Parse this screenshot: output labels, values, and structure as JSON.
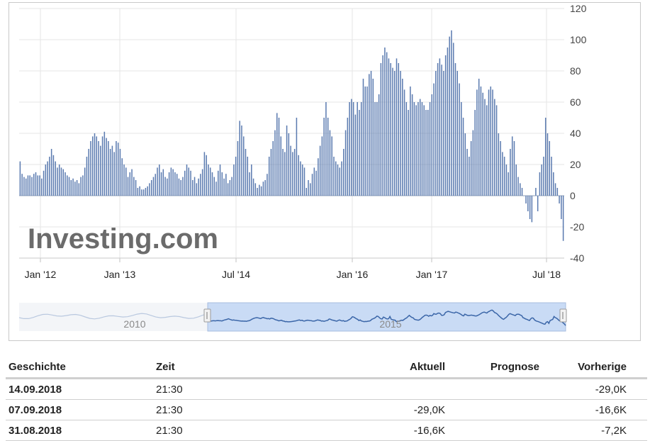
{
  "chart_data": {
    "type": "bar",
    "y_ticks": [
      120,
      100,
      80,
      60,
      40,
      20,
      0,
      -20,
      -40
    ],
    "y_tick_labels": [
      "120",
      "100",
      "80",
      "60",
      "40",
      "20",
      "0",
      "-20",
      "-40"
    ],
    "ylim": [
      -40,
      120
    ],
    "grid": true,
    "x_tick_labels": [
      "Jan '12",
      "Jan '13",
      "Jul '14",
      "Jan '16",
      "Jan '17",
      "Jul '18"
    ],
    "watermark": "Investing.com",
    "navigator_labels": [
      "2010",
      "2015"
    ],
    "series": [
      {
        "values": [
          22,
          14,
          12,
          11,
          13,
          13,
          12,
          14,
          15,
          13,
          13,
          11,
          16,
          20,
          22,
          25,
          30,
          26,
          22,
          18,
          20,
          18,
          17,
          15,
          13,
          12,
          10,
          11,
          9,
          10,
          8,
          12,
          13,
          18,
          25,
          30,
          35,
          38,
          40,
          38,
          35,
          32,
          38,
          41,
          37,
          35,
          30,
          32,
          28,
          35,
          34,
          30,
          24,
          20,
          18,
          12,
          15,
          17,
          12,
          10,
          5,
          6,
          4,
          4,
          5,
          6,
          8,
          10,
          12,
          14,
          18,
          20,
          15,
          17,
          12,
          11,
          15,
          18,
          17,
          15,
          14,
          11,
          10,
          12,
          16,
          20,
          18,
          16,
          10,
          12,
          8,
          11,
          14,
          17,
          28,
          26,
          20,
          18,
          15,
          12,
          9,
          16,
          20,
          15,
          11,
          14,
          8,
          10,
          12,
          20,
          25,
          35,
          48,
          45,
          38,
          30,
          25,
          15,
          20,
          11,
          8,
          5,
          7,
          6,
          9,
          10,
          14,
          25,
          30,
          35,
          42,
          53,
          50,
          38,
          30,
          28,
          45,
          40,
          32,
          28,
          30,
          50,
          26,
          22,
          20,
          18,
          5,
          10,
          8,
          14,
          18,
          16,
          24,
          32,
          38,
          50,
          60,
          50,
          42,
          38,
          25,
          22,
          20,
          18,
          22,
          30,
          42,
          50,
          60,
          62,
          60,
          52,
          60,
          55,
          60,
          75,
          70,
          70,
          78,
          80,
          75,
          60,
          60,
          65,
          85,
          90,
          95,
          92,
          88,
          85,
          82,
          80,
          88,
          85,
          80,
          75,
          68,
          60,
          55,
          70,
          65,
          60,
          58,
          60,
          62,
          60,
          58,
          55,
          55,
          60,
          65,
          72,
          80,
          85,
          88,
          84,
          80,
          90,
          95,
          102,
          106,
          98,
          85,
          80,
          72,
          60,
          50,
          40,
          30,
          25,
          35,
          42,
          55,
          68,
          75,
          70,
          66,
          62,
          58,
          68,
          70,
          68,
          62,
          58,
          40,
          35,
          28,
          25,
          20,
          15,
          30,
          38,
          35,
          20,
          12,
          8,
          5,
          0,
          -5,
          -10,
          -15,
          -17,
          0,
          5,
          -10,
          15,
          20,
          25,
          50,
          40,
          35,
          25,
          15,
          8,
          5,
          -5,
          -15,
          -29
        ]
      }
    ]
  },
  "history": {
    "headers": [
      "Geschichte",
      "Zeit",
      "Aktuell",
      "Prognose",
      "Vorherige"
    ],
    "rows": [
      {
        "date": "14.09.2018",
        "time": "21:30",
        "actual": "",
        "forecast": "",
        "previous": "-29,0K"
      },
      {
        "date": "07.09.2018",
        "time": "21:30",
        "actual": "-29,0K",
        "forecast": "",
        "previous": "-16,6K"
      },
      {
        "date": "31.08.2018",
        "time": "21:30",
        "actual": "-16,6K",
        "forecast": "",
        "previous": "-7,2K"
      }
    ]
  },
  "colors": {
    "bar": "#5b7bb0",
    "grid": "#e6e6e6",
    "nav_fill": "#c9dbf5",
    "nav_line": "#3b66a8"
  }
}
